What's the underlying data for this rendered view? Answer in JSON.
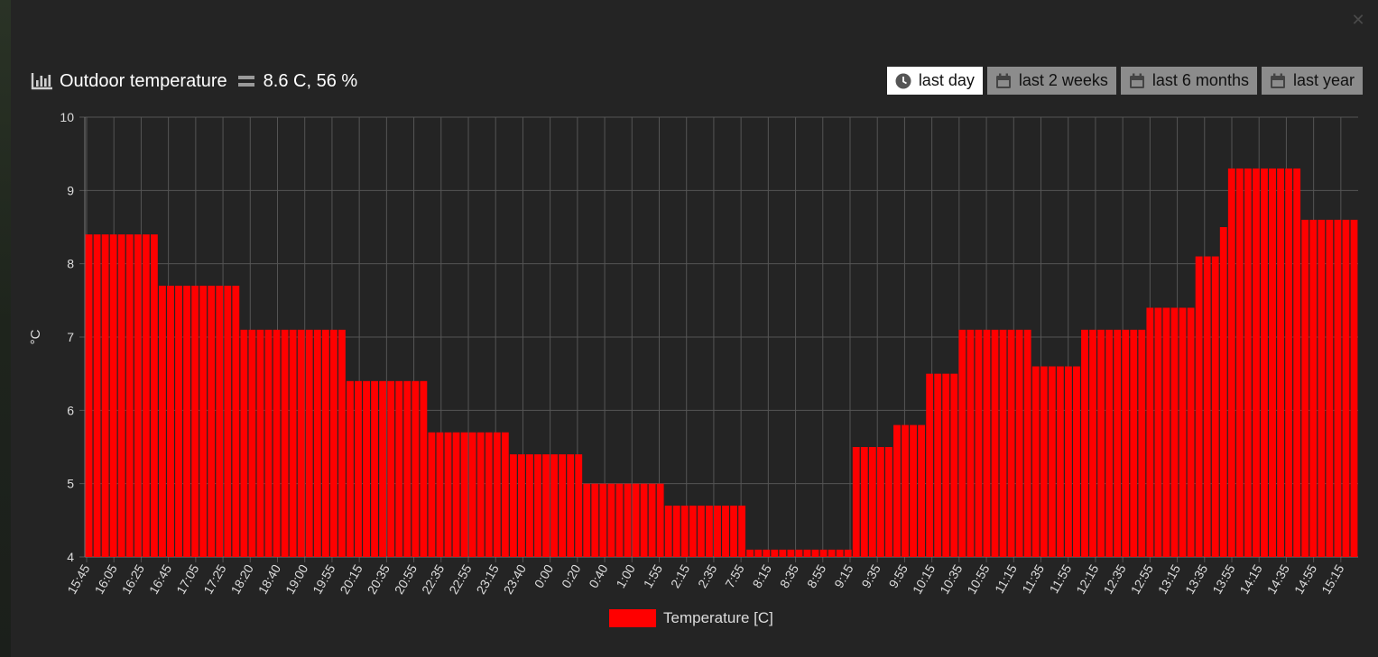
{
  "header": {
    "title": "Outdoor temperature",
    "current_value": "8.6 C, 56 %"
  },
  "range_buttons": [
    {
      "label": "last day",
      "icon": "clock-icon",
      "active": true
    },
    {
      "label": "last 2 weeks",
      "icon": "calendar-icon",
      "active": false
    },
    {
      "label": "last 6 months",
      "icon": "calendar-icon",
      "active": false
    },
    {
      "label": "last year",
      "icon": "calendar-icon",
      "active": false
    }
  ],
  "colors": {
    "bar": "#ff0000",
    "background": "#242424",
    "grid": "#555555",
    "text": "#dcdcdc",
    "active_button": "#ffffff",
    "button": "#8c8c8c"
  },
  "chart_data": {
    "type": "bar",
    "ylabel": "°C",
    "ylim": [
      4,
      10
    ],
    "yticks": [
      4,
      5,
      6,
      7,
      8,
      9,
      10
    ],
    "grid": true,
    "legend_position": "bottom-center",
    "series": [
      {
        "name": "Temperature [C]",
        "values": [
          8.4,
          8.4,
          8.4,
          8.4,
          8.4,
          8.4,
          8.4,
          8.4,
          8.4,
          7.7,
          7.7,
          7.7,
          7.7,
          7.7,
          7.7,
          7.7,
          7.7,
          7.7,
          7.7,
          7.1,
          7.1,
          7.1,
          7.1,
          7.1,
          7.1,
          7.1,
          7.1,
          7.1,
          7.1,
          7.1,
          7.1,
          7.1,
          6.4,
          6.4,
          6.4,
          6.4,
          6.4,
          6.4,
          6.4,
          6.4,
          6.4,
          6.4,
          5.7,
          5.7,
          5.7,
          5.7,
          5.7,
          5.7,
          5.7,
          5.7,
          5.7,
          5.7,
          5.4,
          5.4,
          5.4,
          5.4,
          5.4,
          5.4,
          5.4,
          5.4,
          5.4,
          5.0,
          5.0,
          5.0,
          5.0,
          5.0,
          5.0,
          5.0,
          5.0,
          5.0,
          5.0,
          4.7,
          4.7,
          4.7,
          4.7,
          4.7,
          4.7,
          4.7,
          4.7,
          4.7,
          4.7,
          4.1,
          4.1,
          4.1,
          4.1,
          4.1,
          4.1,
          4.1,
          4.1,
          4.1,
          4.1,
          4.1,
          4.1,
          4.1,
          5.5,
          5.5,
          5.5,
          5.5,
          5.5,
          5.8,
          5.8,
          5.8,
          5.8,
          6.5,
          6.5,
          6.5,
          6.5,
          7.1,
          7.1,
          7.1,
          7.1,
          7.1,
          7.1,
          7.1,
          7.1,
          7.1,
          6.6,
          6.6,
          6.6,
          6.6,
          6.6,
          6.6,
          7.1,
          7.1,
          7.1,
          7.1,
          7.1,
          7.1,
          7.1,
          7.1,
          7.4,
          7.4,
          7.4,
          7.4,
          7.4,
          7.4,
          8.1,
          8.1,
          8.1,
          8.5,
          9.3,
          9.3,
          9.3,
          9.3,
          9.3,
          9.3,
          9.3,
          9.3,
          9.3,
          8.6,
          8.6,
          8.6,
          8.6,
          8.6,
          8.6,
          8.6
        ]
      }
    ],
    "x_tick_labels": [
      "15:45",
      "16:05",
      "16:25",
      "16:45",
      "17:05",
      "17:25",
      "18:20",
      "18:40",
      "19:00",
      "19:55",
      "20:15",
      "20:35",
      "20:55",
      "22:35",
      "22:55",
      "23:15",
      "23:40",
      "0:00",
      "0:20",
      "0:40",
      "1:00",
      "1:55",
      "2:15",
      "2:35",
      "7:55",
      "8:15",
      "8:35",
      "8:55",
      "9:15",
      "9:35",
      "9:55",
      "10:15",
      "10:35",
      "10:55",
      "11:15",
      "11:35",
      "11:55",
      "12:15",
      "12:35",
      "12:55",
      "13:15",
      "13:35",
      "13:55",
      "14:15",
      "14:35",
      "14:55",
      "15:15"
    ]
  }
}
